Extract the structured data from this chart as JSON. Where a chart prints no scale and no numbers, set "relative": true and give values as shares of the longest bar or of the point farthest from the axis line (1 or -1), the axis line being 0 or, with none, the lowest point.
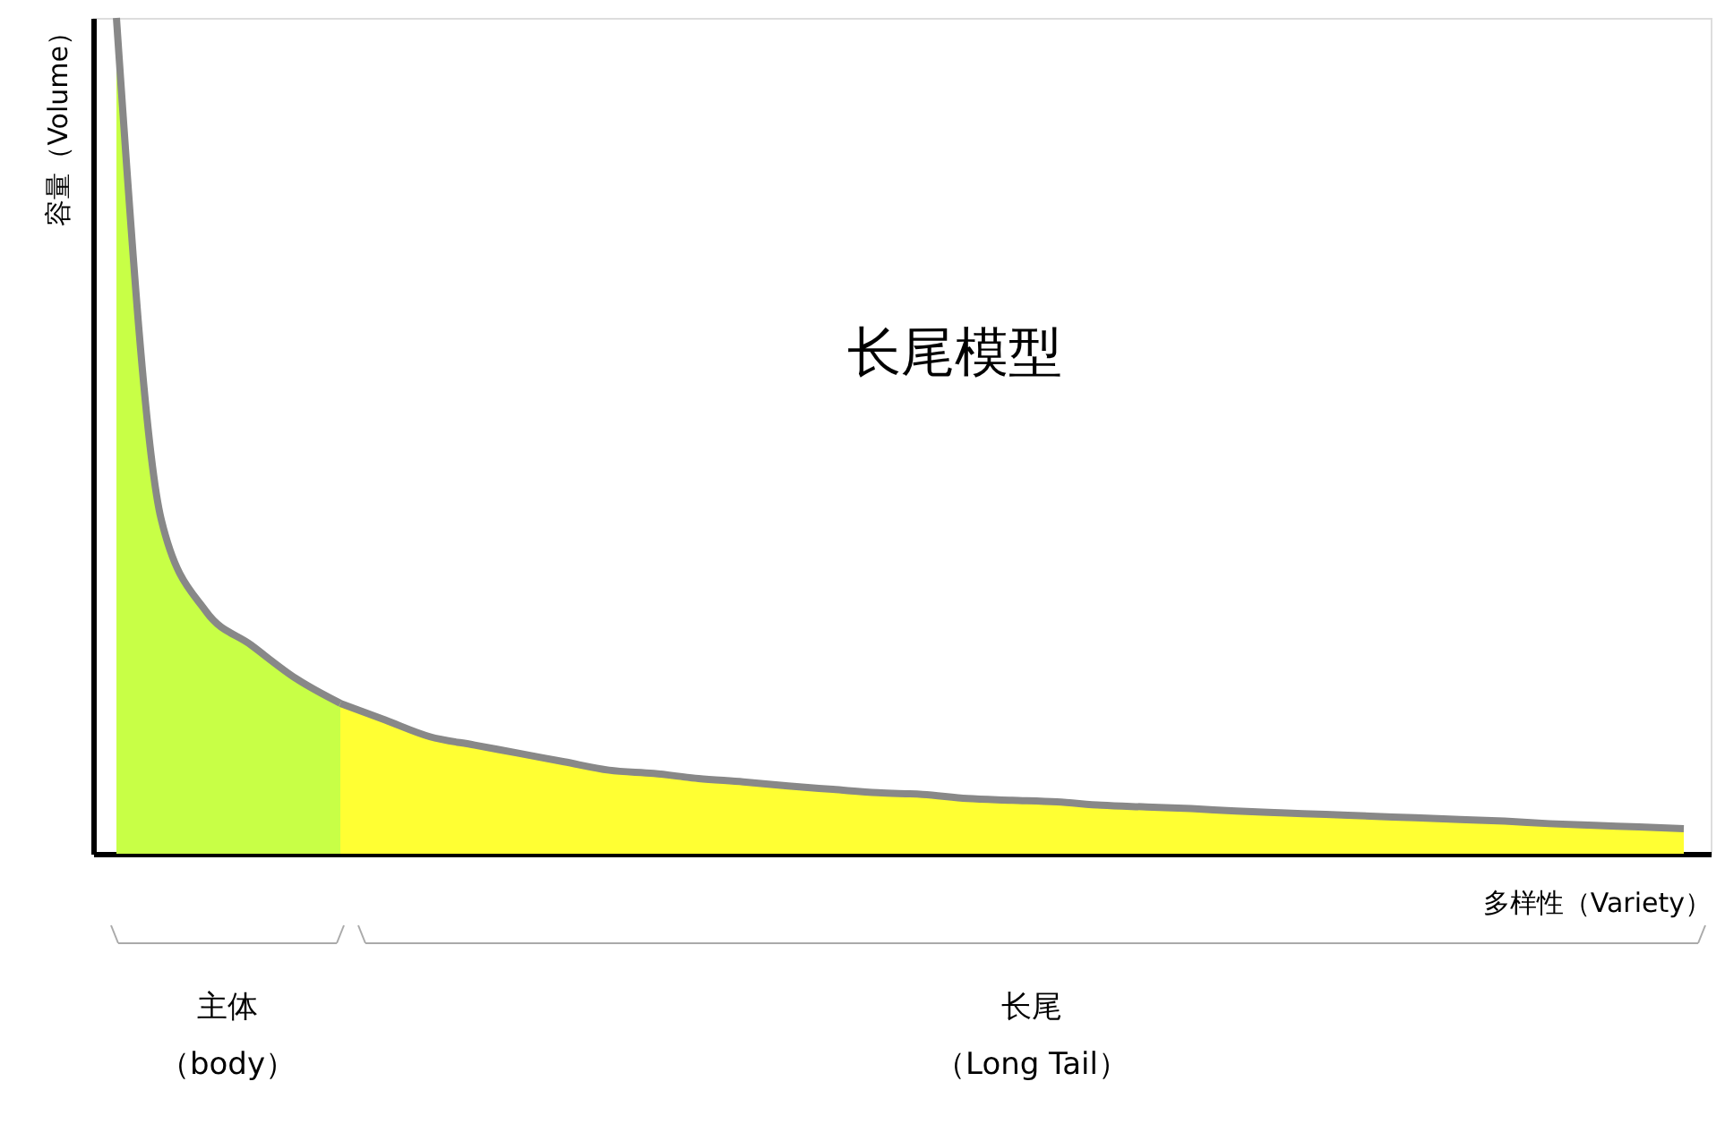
{
  "chart_data": {
    "type": "area",
    "relative": true,
    "title": "长尾模型",
    "xlabel": "多样性（Variety）",
    "ylabel": "容量（Volume）",
    "categories": [
      null,
      null,
      null,
      null,
      null,
      null,
      null,
      null,
      null,
      null,
      null,
      null,
      null,
      null,
      null,
      null,
      null,
      null,
      null,
      null,
      null,
      null,
      null,
      null,
      null,
      null,
      null,
      null,
      null,
      null,
      null,
      null,
      null,
      null,
      null,
      null
    ],
    "series": [
      {
        "color": "#c8ff46",
        "values": [
          1,
          0.4,
          0.29,
          0.25,
          0.21,
          0.18,
          null,
          null,
          null,
          null,
          null,
          null,
          null,
          null,
          null,
          null,
          null,
          null,
          null,
          null,
          null,
          null,
          null,
          null,
          null,
          null,
          null,
          null,
          null,
          null,
          null,
          null,
          null,
          null,
          null,
          null
        ]
      },
      {
        "color": "#ffff33",
        "values": [
          null,
          null,
          null,
          null,
          null,
          0.18,
          0.16,
          0.14,
          0.13,
          0.12,
          0.11,
          0.1,
          0.096,
          0.09,
          0.086,
          0.081,
          0.077,
          0.073,
          0.071,
          0.066,
          0.064,
          0.062,
          0.058,
          0.056,
          0.054,
          0.051,
          0.049,
          0.047,
          0.045,
          0.043,
          0.041,
          0.039,
          0.036,
          0.034,
          0.032,
          0.03
        ]
      }
    ],
    "annotations": [
      "主体（body）",
      "长尾（Long Tail）"
    ],
    "grid": false,
    "legend": false
  }
}
